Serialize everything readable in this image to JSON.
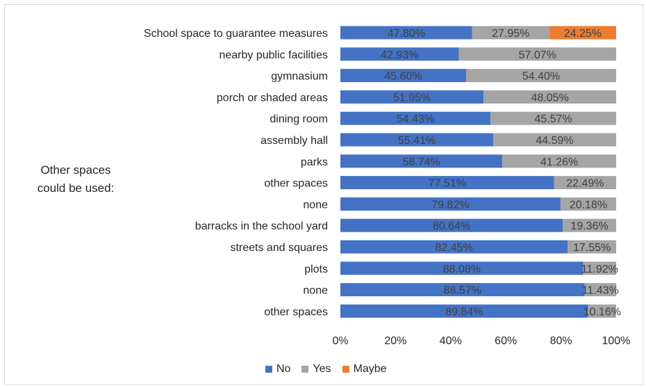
{
  "chart_data": {
    "type": "bar",
    "orientation": "horizontal",
    "stacked": "percent",
    "group_label": [
      "Other spaces",
      "could be used:"
    ],
    "categories": [
      "School space to guarantee measures",
      "nearby public facilities",
      "gymnasium",
      "porch or shaded areas",
      "dining room",
      "assembly hall",
      "parks",
      "other spaces",
      "none",
      "barracks in the school yard",
      "streets and squares",
      "plots",
      "none",
      "other spaces"
    ],
    "series": [
      {
        "name": "No",
        "color": "#4472c4",
        "values": [
          47.8,
          42.93,
          45.6,
          51.95,
          54.43,
          55.41,
          58.74,
          77.51,
          79.82,
          80.64,
          82.45,
          88.08,
          88.57,
          89.84
        ],
        "labels": [
          "47.80%",
          "42.93%",
          "45.60%",
          "51.95%",
          "54.43%",
          "55.41%",
          "58.74%",
          "77.51%",
          "79.82%",
          "80.64%",
          "82.45%",
          "88.08%",
          "88.57%",
          "89.84%"
        ]
      },
      {
        "name": "Yes",
        "color": "#a5a5a5",
        "values": [
          27.95,
          57.07,
          54.4,
          48.05,
          45.57,
          44.59,
          41.26,
          22.49,
          20.18,
          19.36,
          17.55,
          11.92,
          11.43,
          10.16
        ],
        "labels": [
          "27.95%",
          "57.07%",
          "54.40%",
          "48.05%",
          "45.57%",
          "44.59%",
          "41.26%",
          "22.49%",
          "20.18%",
          "19.36%",
          "17.55%",
          "11.92%",
          "11.43%",
          "10.16%"
        ]
      },
      {
        "name": "Maybe",
        "color": "#ed7d31",
        "values": [
          24.25,
          0,
          0,
          0,
          0,
          0,
          0,
          0,
          0,
          0,
          0,
          0,
          0,
          0
        ],
        "labels": [
          "24.25%",
          "",
          "",
          "",
          "",
          "",
          "",
          "",
          "",
          "",
          "",
          "",
          "",
          ""
        ]
      }
    ],
    "xlim": [
      0,
      100
    ],
    "xticks": [
      "0%",
      "20%",
      "40%",
      "60%",
      "80%",
      "100%"
    ],
    "grid": false,
    "legend_position": "bottom"
  }
}
